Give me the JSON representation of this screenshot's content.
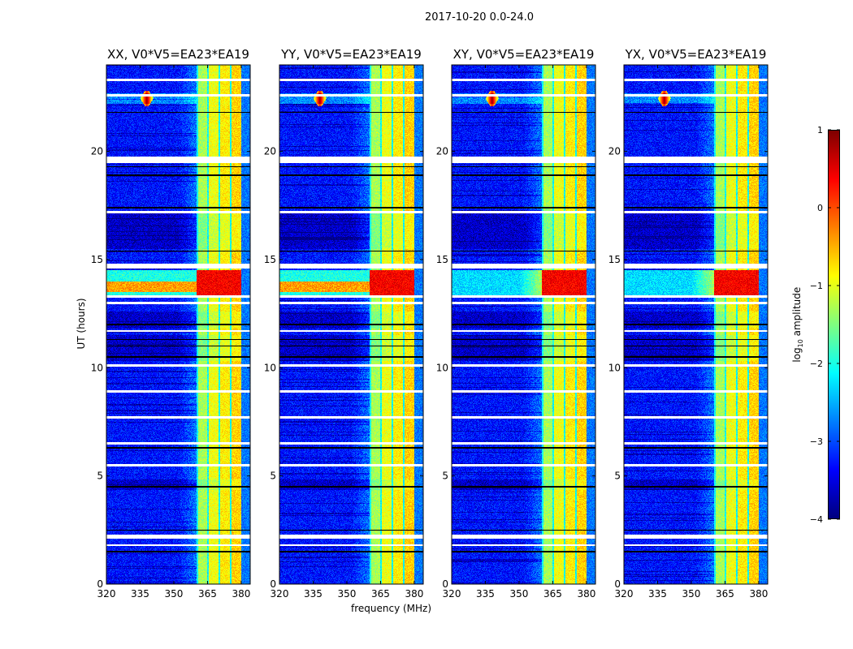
{
  "suptitle": "2017-10-20 0.0-24.0",
  "chart_data": {
    "type": "heatmap",
    "title": "2017-10-20 0.0-24.0",
    "xlabel": "frequency (MHz)",
    "ylabel": "UT (hours)",
    "xlim": [
      320,
      384
    ],
    "ylim": [
      0,
      24
    ],
    "xticks": [
      320,
      335,
      350,
      365,
      380
    ],
    "yticks": [
      0,
      5,
      10,
      15,
      20
    ],
    "panels": [
      {
        "title": "XX, V0*V5=EA23*EA19",
        "pol": "XX"
      },
      {
        "title": "YY, V0*V5=EA23*EA19",
        "pol": "YY"
      },
      {
        "title": "XY, V0*V5=EA23*EA19",
        "pol": "XY"
      },
      {
        "title": "YX, V0*V5=EA23*EA19",
        "pol": "YX"
      }
    ],
    "colorbar": {
      "label_main": "log",
      "label_sub": "10",
      "label_rest": " amplitude",
      "colormap": "jet",
      "range": [
        -4,
        1
      ],
      "ticks": [
        "1",
        "0",
        "−1",
        "−2",
        "−3",
        "−4"
      ],
      "tick_values": [
        1,
        0,
        -1,
        -2,
        -3,
        -4
      ]
    },
    "features": {
      "background_level": -3.3,
      "rfi_band_mhz": [
        360,
        380
      ],
      "rfi_band_level": -0.9,
      "strong_rfi_hours": [
        13.3,
        14.5
      ],
      "strong_rfi_level": 0.4,
      "spike_mhz": 338,
      "spike_hours": [
        22.1,
        22.8
      ],
      "flagged_white_hours": [
        23.3,
        22.6,
        19.6,
        17.2,
        14.7,
        13.3,
        13.0,
        11.7,
        10.1,
        8.9,
        7.7,
        6.5,
        5.5,
        2.2,
        1.8
      ],
      "flagged_black_hours": [
        21.8,
        19.3,
        18.9,
        17.4,
        15.4,
        12.0,
        11.3,
        11.0,
        10.5,
        6.3,
        4.5,
        2.5,
        1.5
      ]
    }
  }
}
